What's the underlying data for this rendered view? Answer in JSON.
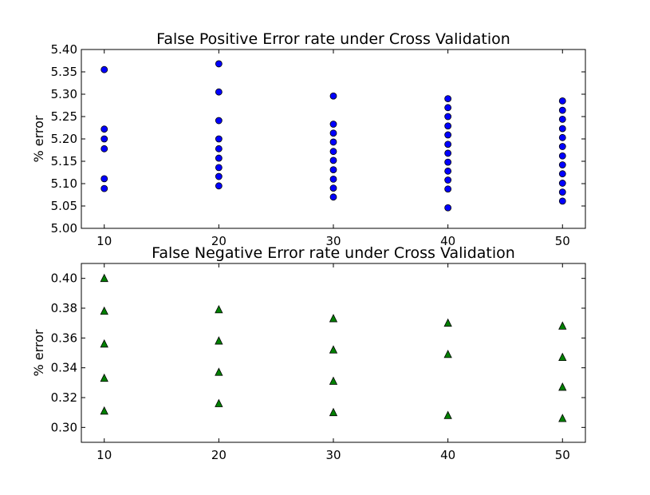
{
  "chart_data": [
    {
      "type": "scatter",
      "title": "False Positive Error rate under Cross Validation",
      "xlabel": "",
      "ylabel": "% error",
      "xlim": [
        8,
        52
      ],
      "ylim": [
        5.0,
        5.4
      ],
      "xticks": [
        10,
        20,
        30,
        40,
        50
      ],
      "yticks": [
        5.0,
        5.05,
        5.1,
        5.15,
        5.2,
        5.25,
        5.3,
        5.35,
        5.4
      ],
      "xtick_labels": [
        "10",
        "20",
        "30",
        "40",
        "50"
      ],
      "ytick_labels": [
        "5.00",
        "5.05",
        "5.10",
        "5.15",
        "5.20",
        "5.25",
        "5.30",
        "5.35",
        "5.40"
      ],
      "grid": false,
      "marker": "circle",
      "color": "#0000ff",
      "points": [
        [
          10,
          5.355
        ],
        [
          10,
          5.222
        ],
        [
          10,
          5.2
        ],
        [
          10,
          5.178
        ],
        [
          10,
          5.111
        ],
        [
          10,
          5.089
        ],
        [
          20,
          5.368
        ],
        [
          20,
          5.305
        ],
        [
          20,
          5.241
        ],
        [
          20,
          5.2
        ],
        [
          20,
          5.178
        ],
        [
          20,
          5.157
        ],
        [
          20,
          5.136
        ],
        [
          20,
          5.116
        ],
        [
          20,
          5.095
        ],
        [
          30,
          5.296
        ],
        [
          30,
          5.233
        ],
        [
          30,
          5.213
        ],
        [
          30,
          5.193
        ],
        [
          30,
          5.172
        ],
        [
          30,
          5.152
        ],
        [
          30,
          5.131
        ],
        [
          30,
          5.11
        ],
        [
          30,
          5.09
        ],
        [
          30,
          5.07
        ],
        [
          40,
          5.29
        ],
        [
          40,
          5.27
        ],
        [
          40,
          5.25
        ],
        [
          40,
          5.229
        ],
        [
          40,
          5.209
        ],
        [
          40,
          5.188
        ],
        [
          40,
          5.168
        ],
        [
          40,
          5.148
        ],
        [
          40,
          5.128
        ],
        [
          40,
          5.108
        ],
        [
          40,
          5.088
        ],
        [
          40,
          5.046
        ],
        [
          50,
          5.285
        ],
        [
          50,
          5.264
        ],
        [
          50,
          5.244
        ],
        [
          50,
          5.223
        ],
        [
          50,
          5.203
        ],
        [
          50,
          5.183
        ],
        [
          50,
          5.162
        ],
        [
          50,
          5.142
        ],
        [
          50,
          5.122
        ],
        [
          50,
          5.101
        ],
        [
          50,
          5.081
        ],
        [
          50,
          5.061
        ]
      ]
    },
    {
      "type": "scatter",
      "title": "False Negative Error rate under Cross Validation",
      "xlabel": "",
      "ylabel": "% error",
      "xlim": [
        8,
        52
      ],
      "ylim": [
        0.29,
        0.41
      ],
      "xticks": [
        10,
        20,
        30,
        40,
        50
      ],
      "yticks": [
        0.3,
        0.32,
        0.34,
        0.36,
        0.38,
        0.4
      ],
      "xtick_labels": [
        "10",
        "20",
        "30",
        "40",
        "50"
      ],
      "ytick_labels": [
        "0.30",
        "0.32",
        "0.34",
        "0.36",
        "0.38",
        "0.40"
      ],
      "grid": false,
      "marker": "triangle",
      "color": "#008000",
      "points": [
        [
          10,
          0.4
        ],
        [
          10,
          0.378
        ],
        [
          10,
          0.356
        ],
        [
          10,
          0.333
        ],
        [
          10,
          0.311
        ],
        [
          20,
          0.379
        ],
        [
          20,
          0.358
        ],
        [
          20,
          0.337
        ],
        [
          20,
          0.316
        ],
        [
          30,
          0.373
        ],
        [
          30,
          0.352
        ],
        [
          30,
          0.331
        ],
        [
          30,
          0.31
        ],
        [
          40,
          0.37
        ],
        [
          40,
          0.349
        ],
        [
          40,
          0.308
        ],
        [
          50,
          0.368
        ],
        [
          50,
          0.347
        ],
        [
          50,
          0.327
        ],
        [
          50,
          0.306
        ]
      ]
    }
  ]
}
